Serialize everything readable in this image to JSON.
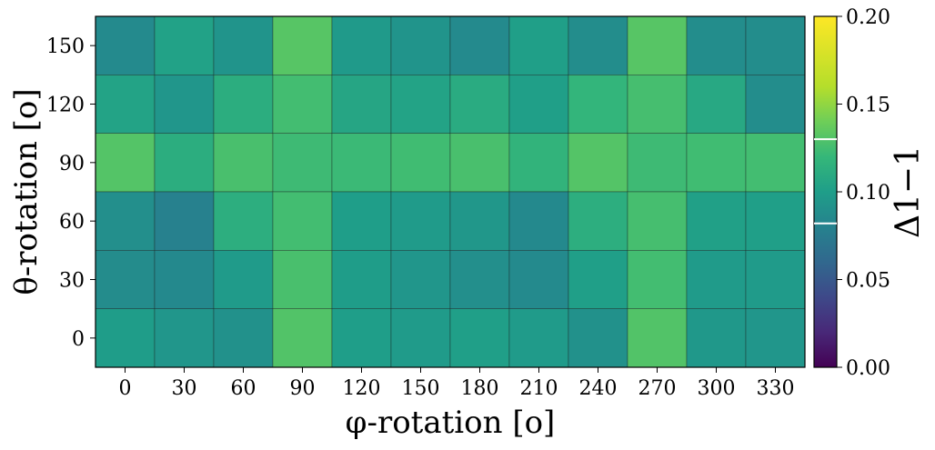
{
  "chart_data": {
    "type": "heatmap",
    "x_categories": [
      "0",
      "30",
      "60",
      "90",
      "120",
      "150",
      "180",
      "210",
      "240",
      "270",
      "300",
      "330"
    ],
    "y_categories": [
      "0",
      "30",
      "60",
      "90",
      "120",
      "150"
    ],
    "xlabel": "φ-rotation [o]",
    "ylabel": "θ-rotation [o]",
    "colorbar": {
      "label": "Δ1−1",
      "range": [
        0.0,
        0.2
      ],
      "ticks": [
        "0.00",
        "0.05",
        "0.10",
        "0.15",
        "0.20"
      ],
      "markers": [
        0.082,
        0.13
      ],
      "colormap": "viridis"
    },
    "grid": true,
    "rows": [
      {
        "theta": "150",
        "values": [
          0.086,
          0.103,
          0.093,
          0.132,
          0.097,
          0.093,
          0.086,
          0.101,
          0.088,
          0.132,
          0.088,
          0.088
        ]
      },
      {
        "theta": "120",
        "values": [
          0.104,
          0.094,
          0.112,
          0.125,
          0.106,
          0.104,
          0.11,
          0.101,
          0.118,
          0.126,
          0.108,
          0.088
        ]
      },
      {
        "theta": "90",
        "values": [
          0.131,
          0.112,
          0.127,
          0.123,
          0.122,
          0.124,
          0.127,
          0.117,
          0.131,
          0.123,
          0.124,
          0.125
        ]
      },
      {
        "theta": "60",
        "values": [
          0.089,
          0.079,
          0.113,
          0.125,
          0.1,
          0.098,
          0.095,
          0.085,
          0.113,
          0.126,
          0.102,
          0.101
        ]
      },
      {
        "theta": "30",
        "values": [
          0.087,
          0.085,
          0.098,
          0.127,
          0.099,
          0.094,
          0.089,
          0.086,
          0.101,
          0.125,
          0.098,
          0.098
        ]
      },
      {
        "theta": "0",
        "values": [
          0.099,
          0.094,
          0.091,
          0.13,
          0.1,
          0.098,
          0.101,
          0.098,
          0.091,
          0.13,
          0.096,
          0.094
        ]
      }
    ]
  }
}
